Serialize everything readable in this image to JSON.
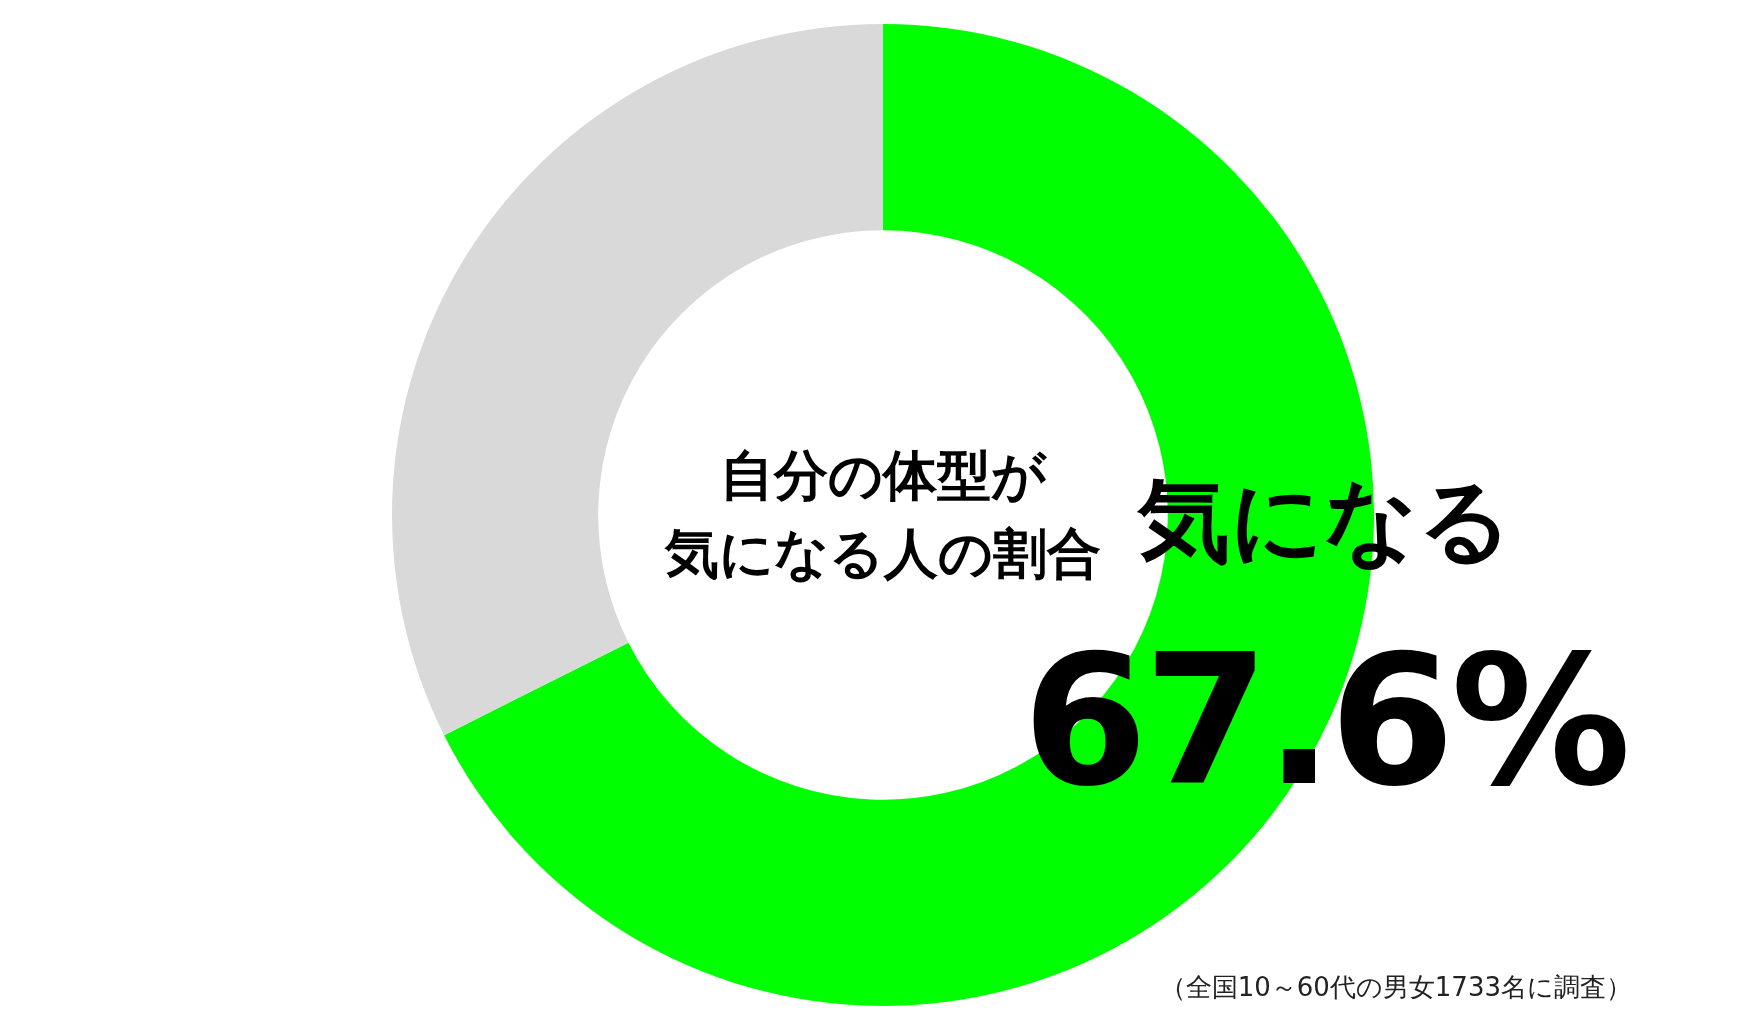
{
  "chart_data": {
    "type": "donut",
    "title": "自分の体型が気になる人の割合",
    "categories": [
      "気になる",
      null
    ],
    "values": [
      67.6,
      32.4
    ],
    "colors": [
      "#00ff00",
      "#d9d9d9"
    ],
    "value_labels": [
      "67.6%",
      null
    ],
    "annotations": [
      "（全国10～60代の男女1733名に調査）"
    ]
  }
}
